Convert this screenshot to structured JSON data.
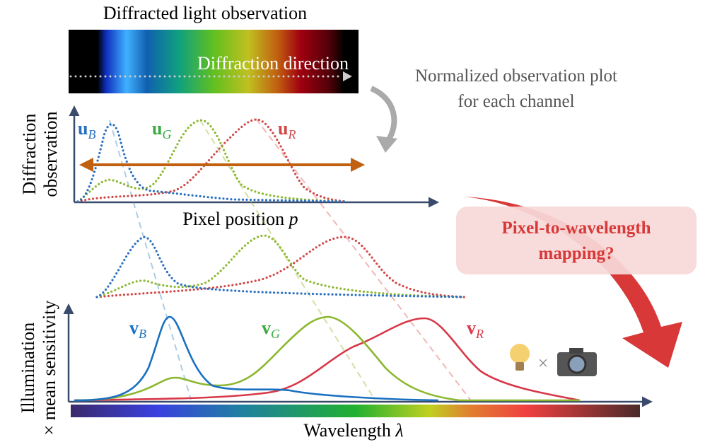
{
  "header": {
    "title": "Diffracted light observation",
    "direction": "Diffraction direction"
  },
  "note": {
    "lines": [
      "Normalized observation plot",
      "for each channel"
    ]
  },
  "top_plot": {
    "ylabel": [
      "Diffraction",
      "observation"
    ],
    "xlabel": {
      "text": "Pixel position ",
      "var": "p"
    },
    "curves": [
      {
        "main": "u",
        "sub": "B"
      },
      {
        "main": "u",
        "sub": "G"
      },
      {
        "main": "u",
        "sub": "R"
      }
    ]
  },
  "mapping": {
    "lines": [
      "Pixel-to-wavelength",
      "mapping?"
    ]
  },
  "bottom_plot": {
    "ylabel": [
      "Illumination",
      "× mean  sensitivity"
    ],
    "xlabel": {
      "text": "Wavelength ",
      "var": "λ"
    },
    "curves": [
      {
        "main": "v",
        "sub": "B"
      },
      {
        "main": "v",
        "sub": "G"
      },
      {
        "main": "v",
        "sub": "R"
      }
    ],
    "times": "×"
  }
}
